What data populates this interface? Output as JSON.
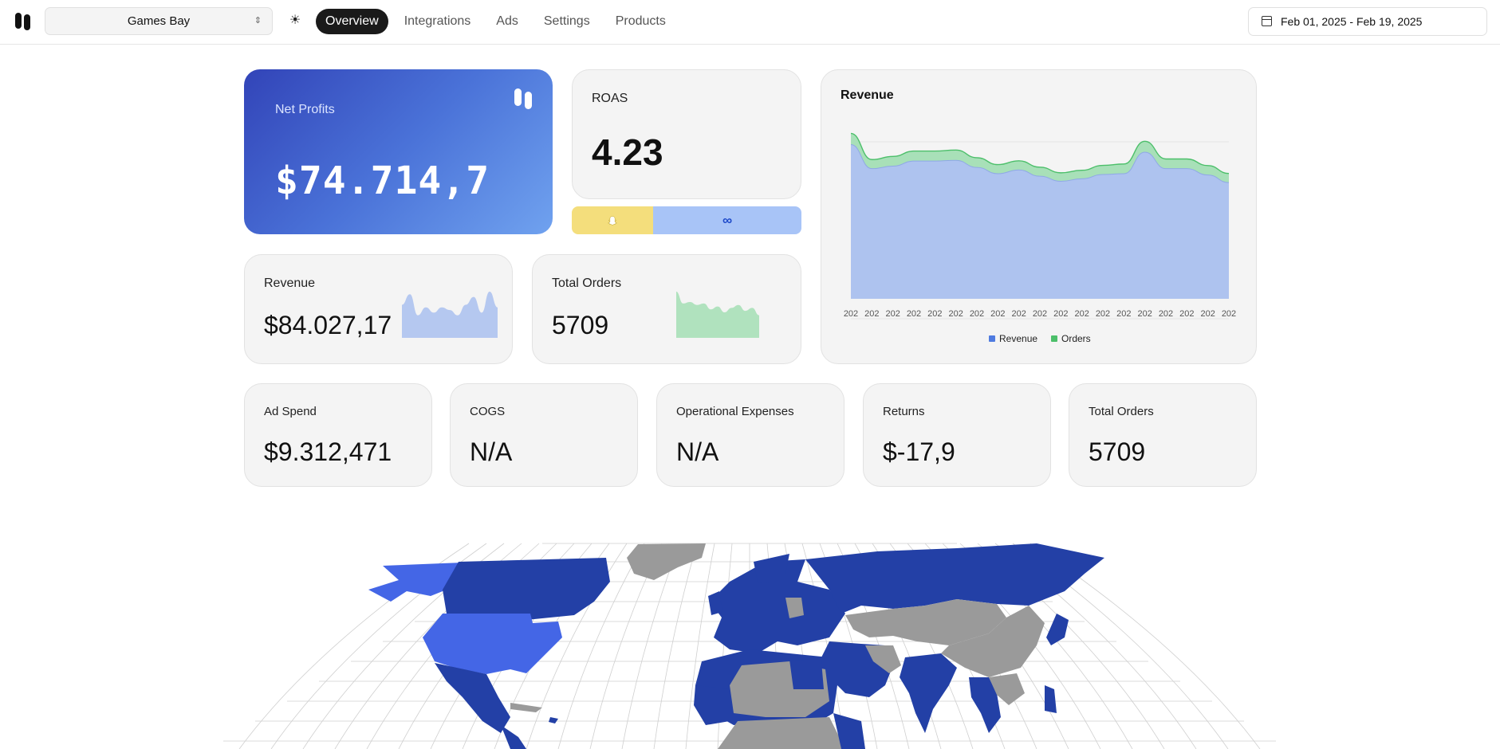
{
  "app": {
    "logo": "brand-logo-icon"
  },
  "store_select": {
    "value": "Games Bay",
    "chevron": "⌃⌄"
  },
  "theme_icon": "☀",
  "nav": {
    "items": [
      "Overview",
      "Integrations",
      "Ads",
      "Settings",
      "Products"
    ],
    "active": "Overview"
  },
  "date_range": {
    "label": "Feb 01, 2025 - Feb 19, 2025"
  },
  "net_profits": {
    "label": "Net Profits",
    "value": "$74.714,7"
  },
  "roas": {
    "label": "ROAS",
    "value": "4.23",
    "platforms": {
      "snapchat_icon": "snapchat-icon",
      "meta_icon": "∞"
    }
  },
  "revenue_kpi": {
    "label": "Revenue",
    "value": "$84.027,17"
  },
  "orders_kpi": {
    "label": "Total Orders",
    "value": "5709"
  },
  "metrics": [
    {
      "label": "Ad Spend",
      "value": "$9.312,471"
    },
    {
      "label": "COGS",
      "value": "N/A"
    },
    {
      "label": "Operational Expenses",
      "value": "N/A"
    },
    {
      "label": "Returns",
      "value": "$-17,9"
    },
    {
      "label": "Total Orders",
      "value": "5709"
    }
  ],
  "colors": {
    "revenue": "#aec3ef",
    "orders": "#a8e0b8",
    "revenue_legend": "#4f7be0",
    "orders_legend": "#4cbf6a",
    "map_blue": "#2340a6",
    "map_usa": "#4466e6",
    "map_grey": "#9a9a9a"
  },
  "chart_data": {
    "type": "area",
    "title": "Revenue",
    "x": [
      "202",
      "202",
      "202",
      "202",
      "202",
      "202",
      "202",
      "202",
      "202",
      "202",
      "202",
      "202",
      "202",
      "202",
      "202",
      "202",
      "202",
      "202",
      "202"
    ],
    "series": [
      {
        "name": "Revenue",
        "values": [
          6100,
          5150,
          5250,
          5450,
          5450,
          5480,
          5200,
          4950,
          5100,
          4850,
          4650,
          4750,
          4920,
          4950,
          5800,
          5150,
          5150,
          4900,
          4600
        ]
      },
      {
        "name": "Orders",
        "values": [
          370,
          300,
          320,
          330,
          330,
          340,
          320,
          300,
          300,
          300,
          280,
          280,
          300,
          320,
          360,
          320,
          320,
          310,
          300
        ]
      }
    ],
    "stacked": true,
    "legend": "bottom",
    "grid": true
  },
  "spark_revenue": [
    3900,
    4100,
    3700,
    3850,
    3750,
    3850,
    3800,
    3700,
    3900,
    4050,
    3750,
    4150,
    3850
  ],
  "spark_orders": [
    370,
    330,
    335,
    325,
    330,
    310,
    320,
    300,
    315,
    325,
    305,
    315,
    290
  ]
}
